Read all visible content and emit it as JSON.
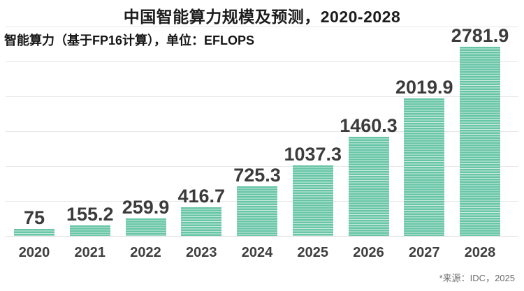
{
  "title": "中国智能算力规模及预测，2020-2028",
  "subtitle": "智能算力（基于FP16计算），单位：EFLOPS",
  "source_note": "*来源：IDC，2025",
  "colors": {
    "bar_fill": "#68c6a8",
    "bar_stripe": "#cbeadd",
    "gridline": "#e7e7e7",
    "baseline": "#dcdcdc",
    "title_text": "#1c1c1c",
    "value_text": "#3b3b3b",
    "axis_text": "#3f3f3f",
    "source_text": "#6e6e6e"
  },
  "chart_data": {
    "type": "bar",
    "title": "中国智能算力规模及预测，2020-2028",
    "subtitle_unit": "智能算力（基于FP16计算），单位：EFLOPS",
    "categories": [
      "2020",
      "2021",
      "2022",
      "2023",
      "2024",
      "2025",
      "2026",
      "2027",
      "2028"
    ],
    "values": [
      75,
      155.2,
      259.9,
      416.7,
      725.3,
      1037.3,
      1460.3,
      2019.9,
      2781.9
    ],
    "value_labels": [
      "75",
      "155.2",
      "259.9",
      "416.7",
      "725.3",
      "1037.3",
      "1460.3",
      "2019.9",
      "2781.9"
    ],
    "xlabel": "",
    "ylabel": "EFLOPS",
    "ylim": [
      0,
      3000
    ],
    "grid_step": 500,
    "grid": "horizontal",
    "legend_position": "none",
    "source": "*来源：IDC，2025"
  }
}
